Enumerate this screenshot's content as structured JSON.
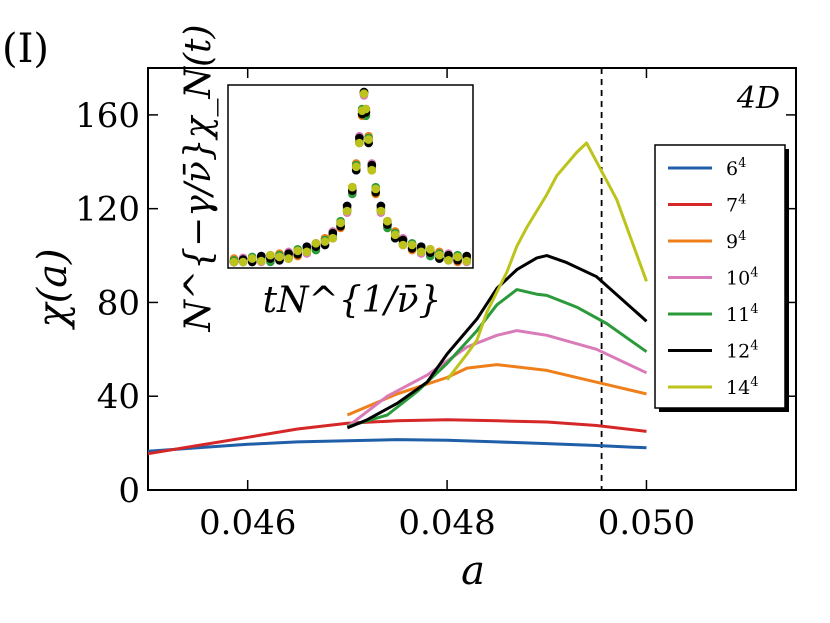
{
  "figure": {
    "panel_label": "(I)",
    "annotation": "4D",
    "inset": {
      "xlabel": "tN^{1/ν̄}",
      "ylabel": "N^{−γ/ν̄}χ_N(t)"
    }
  },
  "chart_data": {
    "type": "line",
    "title": "",
    "xlabel": "a",
    "ylabel": "χ(a)",
    "xlim": [
      0.045,
      0.0515
    ],
    "ylim": [
      0,
      180
    ],
    "xticks": [
      0.046,
      0.048,
      0.05
    ],
    "xtick_labels": [
      "0.046",
      "0.048",
      "0.050"
    ],
    "yticks": [
      0,
      40,
      80,
      120,
      160
    ],
    "ytick_labels": [
      "0",
      "40",
      "80",
      "120",
      "160"
    ],
    "reference_line": {
      "x": 0.04955,
      "style": "dashed"
    },
    "legend_position": "upper-right",
    "series": [
      {
        "name": "6",
        "superscript": "4",
        "color": "#1f5fa8",
        "x": [
          0.045,
          0.0455,
          0.046,
          0.0465,
          0.047,
          0.0475,
          0.048,
          0.0485,
          0.049,
          0.0495,
          0.05
        ],
        "y": [
          16.5,
          18,
          19.5,
          20.5,
          21,
          21.5,
          21.2,
          20.5,
          19.8,
          19,
          18
        ]
      },
      {
        "name": "7",
        "superscript": "4",
        "color": "#d62728",
        "x": [
          0.045,
          0.0455,
          0.046,
          0.0465,
          0.047,
          0.0475,
          0.048,
          0.0485,
          0.049,
          0.0495,
          0.05
        ],
        "y": [
          15.5,
          19,
          22.5,
          26,
          28.5,
          29.5,
          30,
          29.5,
          29,
          27.5,
          25
        ]
      },
      {
        "name": "9",
        "superscript": "4",
        "color": "#ef7f1a",
        "x": [
          0.047,
          0.0475,
          0.048,
          0.0482,
          0.0485,
          0.049,
          0.0495,
          0.05
        ],
        "y": [
          32,
          41,
          48,
          52,
          53.5,
          51,
          46,
          41
        ]
      },
      {
        "name": "10",
        "superscript": "4",
        "color": "#d97bb8",
        "x": [
          0.047,
          0.0474,
          0.0478,
          0.0482,
          0.0485,
          0.0487,
          0.049,
          0.0495,
          0.05
        ],
        "y": [
          27,
          40,
          49,
          61,
          66,
          68,
          66,
          60,
          50
        ]
      },
      {
        "name": "11",
        "superscript": "4",
        "color": "#2b9a3a",
        "x": [
          0.047,
          0.0474,
          0.0477,
          0.048,
          0.0483,
          0.0485,
          0.0487,
          0.0489,
          0.049,
          0.0493,
          0.0496,
          0.05
        ],
        "y": [
          27,
          32,
          42,
          54,
          68,
          79,
          85.5,
          83.5,
          83,
          78,
          71,
          59
        ]
      },
      {
        "name": "12",
        "superscript": "4",
        "color": "#000000",
        "x": [
          0.047,
          0.0472,
          0.0475,
          0.0478,
          0.048,
          0.0483,
          0.0485,
          0.0487,
          0.0489,
          0.049,
          0.0492,
          0.0495,
          0.05
        ],
        "y": [
          26.5,
          30,
          37,
          46,
          58,
          73,
          86,
          94,
          99,
          100,
          97,
          91,
          72
        ]
      },
      {
        "name": "14",
        "superscript": "4",
        "color": "#bcc41b",
        "x": [
          0.048,
          0.0482,
          0.0483,
          0.0484,
          0.0486,
          0.0487,
          0.0488,
          0.049,
          0.0491,
          0.0493,
          0.0494,
          0.0495,
          0.0497,
          0.05
        ],
        "y": [
          47,
          58,
          64,
          76,
          93,
          104,
          112,
          126,
          134,
          144,
          148,
          140,
          124,
          89
        ]
      }
    ],
    "inset_points": {
      "note": "scaling collapse; x from -1 to 1, y normalized 0-1",
      "x": [
        -1.0,
        -0.93,
        -0.86,
        -0.79,
        -0.72,
        -0.65,
        -0.58,
        -0.51,
        -0.44,
        -0.37,
        -0.3,
        -0.24,
        -0.18,
        -0.13,
        -0.09,
        -0.06,
        -0.035,
        -0.015,
        0.0,
        0.015,
        0.035,
        0.06,
        0.09,
        0.13,
        0.18,
        0.24,
        0.3,
        0.37,
        0.44,
        0.51,
        0.58,
        0.65,
        0.72,
        0.79
      ],
      "y": [
        0.0,
        0.005,
        0.01,
        0.015,
        0.02,
        0.03,
        0.04,
        0.055,
        0.07,
        0.09,
        0.12,
        0.16,
        0.22,
        0.31,
        0.42,
        0.56,
        0.72,
        0.88,
        1.0,
        0.88,
        0.72,
        0.56,
        0.42,
        0.31,
        0.22,
        0.16,
        0.12,
        0.09,
        0.07,
        0.055,
        0.04,
        0.03,
        0.02,
        0.015
      ]
    }
  }
}
